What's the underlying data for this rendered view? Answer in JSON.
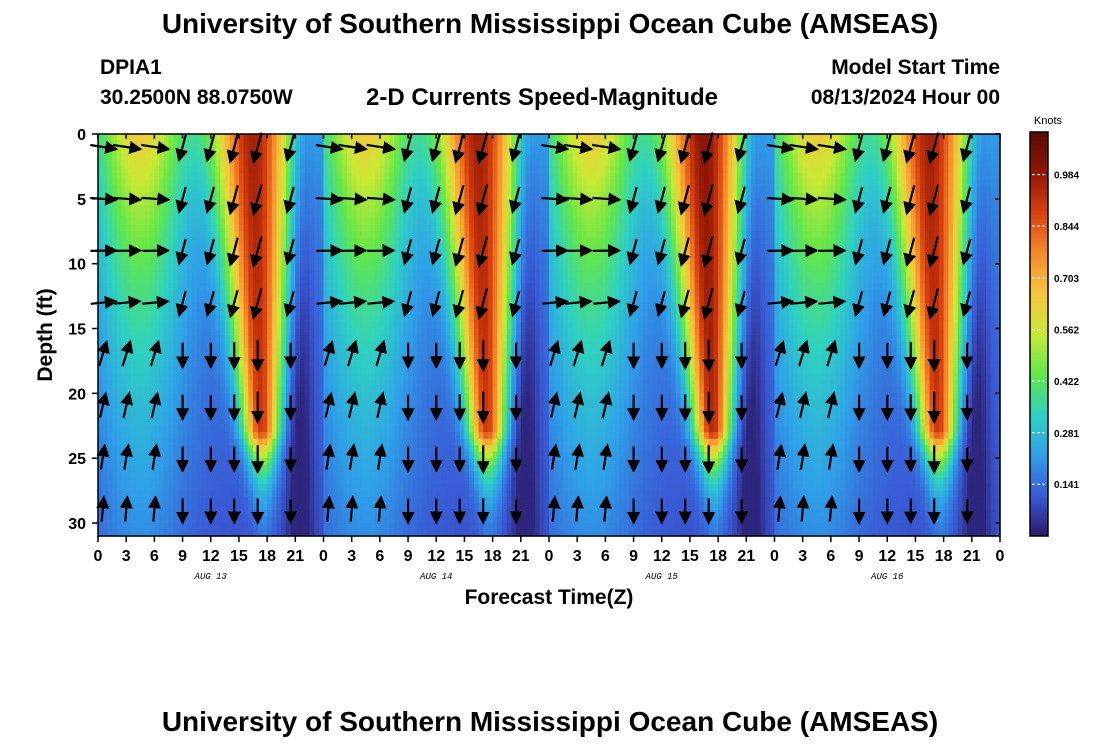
{
  "header": {
    "title": "University of Southern Mississippi Ocean Cube (AMSEAS)",
    "station_id": "DPIA1",
    "station_coords": "30.2500N  88.0750W",
    "subtitle": "2-D Currents Speed-Magnitude",
    "model_start_label": "Model Start Time",
    "model_start_value": "08/13/2024 Hour 00"
  },
  "footer": {
    "title": "University of Southern Mississippi Ocean Cube (AMSEAS)"
  },
  "colors": {
    "scale": [
      "#2c1a6b",
      "#3a5bd6",
      "#2fa0e8",
      "#2fd1c0",
      "#62e64a",
      "#c9e835",
      "#f6c53c",
      "#f58a2c",
      "#d8400f",
      "#8f1707",
      "#5a0b06"
    ]
  },
  "chart_data": {
    "type": "heatmap",
    "title": "2-D Currents Speed-Magnitude",
    "xlabel": "Forecast Time(Z)",
    "ylabel": "Depth (ft)",
    "x_ticks": [
      "0",
      "3",
      "6",
      "9",
      "12",
      "15",
      "18",
      "21",
      "0",
      "3",
      "6",
      "9",
      "12",
      "15",
      "18",
      "21",
      "0",
      "3",
      "6",
      "9",
      "12",
      "15",
      "18",
      "21",
      "0",
      "3",
      "6",
      "9",
      "12",
      "15",
      "18",
      "21",
      "0"
    ],
    "x_range_hours": [
      0,
      96
    ],
    "date_labels": [
      {
        "hour": 12,
        "label": "AUG 13"
      },
      {
        "hour": 36,
        "label": "AUG 14"
      },
      {
        "hour": 60,
        "label": "AUG 15"
      },
      {
        "hour": 84,
        "label": "AUG 16"
      }
    ],
    "y_ticks": [
      0,
      5,
      10,
      15,
      20,
      25,
      30
    ],
    "ylim": [
      31,
      0
    ],
    "colorbar": {
      "label": "Knots",
      "ticks": [
        "0.984",
        "0.844",
        "0.703",
        "0.562",
        "0.422",
        "0.281",
        "0.141"
      ],
      "range": [
        0,
        1.1
      ]
    },
    "pattern": {
      "cycle_hours": 24,
      "cycles": [
        {
          "start_hour": 0,
          "peak_hour": 16.5,
          "peak_speed_knots": 1.0
        },
        {
          "start_hour": 24,
          "peak_hour": 40.5,
          "peak_speed_knots": 1.0
        },
        {
          "start_hour": 48,
          "peak_hour": 64.5,
          "peak_speed_knots": 1.05
        },
        {
          "start_hour": 72,
          "peak_hour": 88.5,
          "peak_speed_knots": 1.0
        }
      ],
      "max_depth_of_strong_flow_ft": 23
    },
    "vector_hours": [
      0.5,
      3,
      6,
      9,
      12,
      14.5,
      17,
      20.5,
      24.5,
      27,
      30,
      33,
      36,
      38.5,
      41,
      44.5,
      48.5,
      51,
      54,
      57,
      60,
      62.5,
      65,
      68.5,
      72.5,
      75,
      78,
      81,
      84,
      86.5,
      89,
      92.5
    ],
    "vector_depths_ft": [
      1,
      5,
      9,
      13,
      17,
      21,
      25,
      29
    ]
  }
}
